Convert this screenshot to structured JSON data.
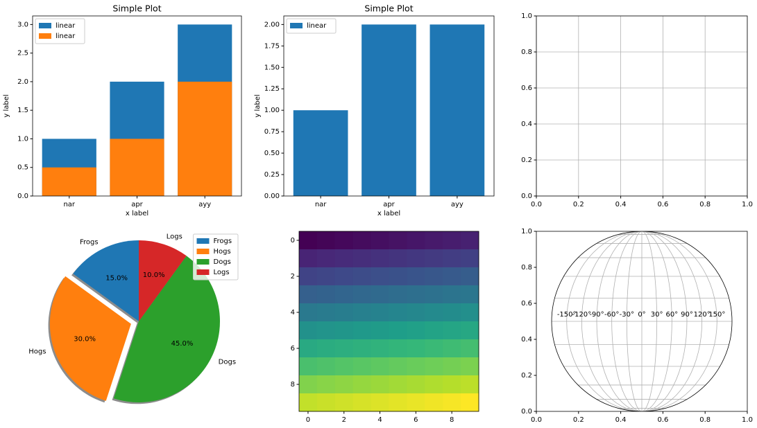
{
  "chart_data": [
    {
      "type": "bar",
      "title": "Simple Plot",
      "x_label": "x label",
      "y_label": "y label",
      "categories": [
        "nar",
        "apr",
        "ayy"
      ],
      "series": [
        {
          "name": "linear",
          "color": "#1f77b4",
          "values": [
            1,
            2,
            3
          ]
        },
        {
          "name": "linear",
          "color": "#ff7f0e",
          "values": [
            0.5,
            1,
            2
          ]
        }
      ],
      "ylim": [
        0,
        3.15
      ],
      "yticks": [
        {
          "value": 0,
          "label": "0.0"
        },
        0.5,
        {
          "value": 1,
          "label": "1.0"
        },
        1.5,
        {
          "value": 2,
          "label": "2.0"
        },
        2.5,
        {
          "value": 3,
          "label": "3.0"
        }
      ],
      "legend": "upper left"
    },
    {
      "type": "bar",
      "title": "Simple Plot",
      "x_label": "x label",
      "y_label": "y label",
      "categories": [
        "nar",
        "apr",
        "ayy"
      ],
      "series": [
        {
          "name": "linear",
          "color": "#1f77b4",
          "values": [
            1,
            2,
            2
          ]
        }
      ],
      "ylim": [
        0,
        2.1
      ],
      "yticks": [
        {
          "value": 0,
          "label": "0.00"
        },
        {
          "value": 0.25,
          "label": "0.25"
        },
        {
          "value": 0.5,
          "label": "0.50"
        },
        {
          "value": 0.75,
          "label": "0.75"
        },
        {
          "value": 1,
          "label": "1.00"
        },
        {
          "value": 1.25,
          "label": "1.25"
        },
        {
          "value": 1.5,
          "label": "1.50"
        },
        {
          "value": 1.75,
          "label": "1.75"
        },
        {
          "value": 2,
          "label": "2.00"
        }
      ],
      "legend": "upper left"
    },
    {
      "type": "grid",
      "xlim": [
        0,
        1
      ],
      "ylim": [
        0,
        1
      ],
      "xticks": [
        {
          "value": 0,
          "label": "0.0"
        },
        0.2,
        0.4,
        0.6,
        0.8,
        {
          "value": 1,
          "label": "1.0"
        }
      ],
      "yticks": [
        {
          "value": 0,
          "label": "0.0"
        },
        0.2,
        0.4,
        0.6,
        0.8,
        {
          "value": 1,
          "label": "1.0"
        }
      ],
      "grid": true
    },
    {
      "type": "pie",
      "labels": [
        "Frogs",
        "Hogs",
        "Dogs",
        "Logs"
      ],
      "values": [
        15,
        30,
        45,
        10
      ],
      "value_labels": [
        "15.0%",
        "30.0%",
        "45.0%",
        "10.0%"
      ],
      "colors": [
        "#1f77b4",
        "#ff7f0e",
        "#2ca02c",
        "#d62728"
      ],
      "explode": [
        0,
        0.1,
        0,
        0
      ],
      "startangle": 90,
      "shadow": true,
      "legend": "upper right"
    },
    {
      "type": "heatmap",
      "colormap": "viridis",
      "values": [
        [
          0,
          1,
          2,
          3,
          4,
          5,
          6,
          7,
          8,
          9
        ],
        [
          10,
          11,
          12,
          13,
          14,
          15,
          16,
          17,
          18,
          19
        ],
        [
          20,
          21,
          22,
          23,
          24,
          25,
          26,
          27,
          28,
          29
        ],
        [
          30,
          31,
          32,
          33,
          34,
          35,
          36,
          37,
          38,
          39
        ],
        [
          40,
          41,
          42,
          43,
          44,
          45,
          46,
          47,
          48,
          49
        ],
        [
          50,
          51,
          52,
          53,
          54,
          55,
          56,
          57,
          58,
          59
        ],
        [
          60,
          61,
          62,
          63,
          64,
          65,
          66,
          67,
          68,
          69
        ],
        [
          70,
          71,
          72,
          73,
          74,
          75,
          76,
          77,
          78,
          79
        ],
        [
          80,
          81,
          82,
          83,
          84,
          85,
          86,
          87,
          88,
          89
        ],
        [
          90,
          91,
          92,
          93,
          94,
          95,
          96,
          97,
          98,
          99
        ]
      ],
      "xlim": [
        -0.5,
        9.5
      ],
      "ylim": [
        9.5,
        -0.5
      ],
      "xticks": [
        0,
        2,
        4,
        6,
        8
      ],
      "yticks": [
        0,
        2,
        4,
        6,
        8
      ]
    },
    {
      "type": "geo",
      "projection": "mollweide",
      "xlim": [
        0,
        1
      ],
      "ylim": [
        0,
        1
      ],
      "xticks": [
        {
          "value": 0,
          "label": "0.0"
        },
        0.2,
        0.4,
        0.6,
        0.8,
        {
          "value": 1,
          "label": "1.0"
        }
      ],
      "yticks": [
        {
          "value": 0,
          "label": "0.0"
        },
        0.2,
        0.4,
        0.6,
        0.8,
        {
          "value": 1,
          "label": "1.0"
        }
      ],
      "lon_ticks": [
        {
          "value": -150,
          "label": "-150°"
        },
        {
          "value": -120,
          "label": "-120°"
        },
        {
          "value": -90,
          "label": "-90°"
        },
        {
          "value": -60,
          "label": "-60°"
        },
        {
          "value": -30,
          "label": "-30°"
        },
        {
          "value": 0,
          "label": "0°"
        },
        {
          "value": 30,
          "label": "30°"
        },
        {
          "value": 60,
          "label": "60°"
        },
        {
          "value": 90,
          "label": "90°"
        },
        {
          "value": 120,
          "label": "120°"
        },
        {
          "value": 150,
          "label": "150°"
        }
      ],
      "lat_ticks": [
        -75,
        -60,
        -45,
        -30,
        -15,
        0,
        15,
        30,
        45,
        60,
        75
      ],
      "grid": true
    }
  ]
}
